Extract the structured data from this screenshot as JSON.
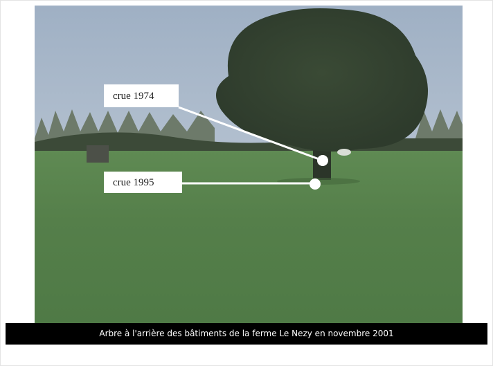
{
  "annotations": [
    {
      "label": "crue 1974"
    },
    {
      "label": "crue 1995"
    }
  ],
  "caption": "Arbre à l'arrière des bâtiments de la ferme Le Nezy en novembre 2001"
}
